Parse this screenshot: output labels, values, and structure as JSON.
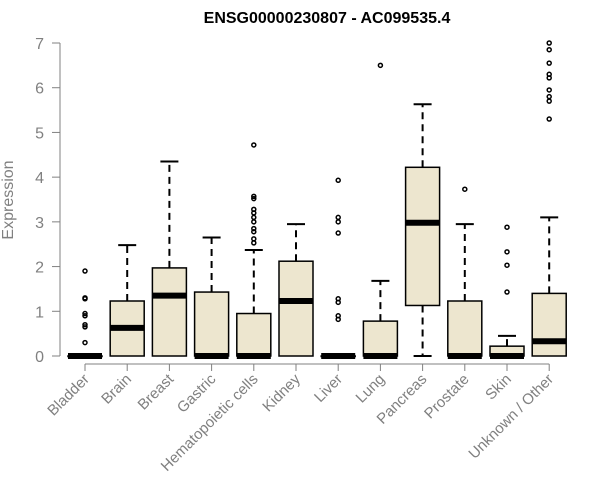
{
  "chart_data": {
    "type": "boxplot",
    "title": "ENSG00000230807 - AC099535.4",
    "xlabel": "",
    "ylabel": "Expression",
    "ylim": [
      0,
      7
    ],
    "yticks": [
      "0",
      "1",
      "2",
      "3",
      "4",
      "5",
      "6",
      "7"
    ],
    "grid": false,
    "colors": {
      "box_fill": "#ede6cf",
      "stroke": "#000000",
      "axis": "#808080",
      "label": "#808080"
    },
    "categories": [
      "Bladder",
      "Brain",
      "Breast",
      "Gastric",
      "Hematopoietic cells",
      "Kidney",
      "Liver",
      "Lung",
      "Pancreas",
      "Prostate",
      "Skin",
      "Unknown / Other"
    ],
    "boxes": [
      {
        "min": 0,
        "q1": 0,
        "median": 0,
        "q3": 0,
        "max": 0,
        "outliers": [
          1.9,
          1.3,
          1.28,
          0.95,
          0.9,
          0.7,
          0.65,
          0.3
        ]
      },
      {
        "min": 0,
        "q1": 0,
        "median": 0.63,
        "q3": 1.23,
        "max": 2.48,
        "outliers": []
      },
      {
        "min": 0,
        "q1": 0,
        "median": 1.35,
        "q3": 1.97,
        "max": 4.35,
        "outliers": []
      },
      {
        "min": 0,
        "q1": 0,
        "median": 0,
        "q3": 1.43,
        "max": 2.65,
        "outliers": []
      },
      {
        "min": 0,
        "q1": 0,
        "median": 0,
        "q3": 0.95,
        "max": 2.37,
        "outliers": [
          4.72,
          3.57,
          3.52,
          3.28,
          3.2,
          3.1,
          3.0,
          2.85,
          2.78,
          2.62,
          2.53
        ]
      },
      {
        "min": 0,
        "q1": 0,
        "median": 1.23,
        "q3": 2.12,
        "max": 2.95,
        "outliers": []
      },
      {
        "min": 0,
        "q1": 0,
        "median": 0,
        "q3": 0,
        "max": 0,
        "outliers": [
          3.93,
          3.1,
          3.0,
          2.75,
          1.28,
          1.2,
          0.9,
          0.82
        ]
      },
      {
        "min": 0,
        "q1": 0,
        "median": 0,
        "q3": 0.78,
        "max": 1.68,
        "outliers": [
          6.5
        ]
      },
      {
        "min": 0,
        "q1": 1.13,
        "median": 2.98,
        "q3": 4.22,
        "max": 5.63,
        "outliers": []
      },
      {
        "min": 0,
        "q1": 0,
        "median": 0,
        "q3": 1.23,
        "max": 2.95,
        "outliers": [
          3.73
        ]
      },
      {
        "min": 0,
        "q1": 0,
        "median": 0,
        "q3": 0.22,
        "max": 0.45,
        "outliers": [
          2.88,
          2.33,
          2.03,
          1.43
        ]
      },
      {
        "min": 0,
        "q1": 0,
        "median": 0.33,
        "q3": 1.4,
        "max": 3.1,
        "outliers": [
          7.0,
          6.85,
          6.55,
          6.3,
          6.22,
          5.95,
          5.8,
          5.7,
          5.3
        ]
      }
    ]
  }
}
